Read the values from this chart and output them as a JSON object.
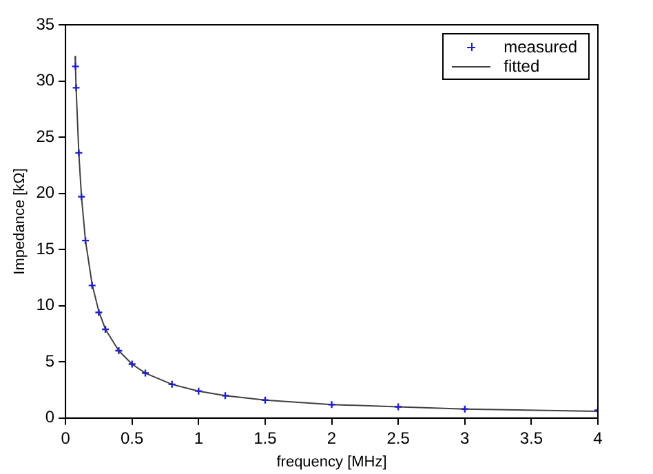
{
  "chart_data": {
    "type": "scatter",
    "xlabel": "frequency [MHz]",
    "ylabel": "Impedance [kΩ]",
    "xlim": [
      0,
      4
    ],
    "xticks": [
      0,
      0.5,
      1,
      1.5,
      2,
      2.5,
      3,
      3.5,
      4
    ],
    "ylim": [
      0,
      35
    ],
    "yticks": [
      0,
      5,
      10,
      15,
      20,
      25,
      30,
      35
    ],
    "grid": false,
    "legend": "top right",
    "series": [
      {
        "name": "measured",
        "type": "scatter",
        "marker": "cross",
        "color": "#2020c8",
        "x": [
          0.075,
          0.08,
          0.1,
          0.12,
          0.15,
          0.2,
          0.25,
          0.3,
          0.4,
          0.5,
          0.6,
          0.8,
          1,
          1.2,
          1.5,
          2,
          2.5,
          3,
          4
        ],
        "values": [
          31.3,
          29.4,
          23.6,
          19.7,
          15.8,
          11.8,
          9.4,
          7.9,
          6.0,
          4.8,
          4.0,
          3.0,
          2.4,
          2.0,
          1.6,
          1.2,
          1.0,
          0.8,
          0.7
        ]
      },
      {
        "name": "fitted",
        "type": "line",
        "marker": "none",
        "line_style": "solid",
        "color": "#404040",
        "x": [
          0.072,
          0.075,
          0.08,
          0.1,
          0.12,
          0.15,
          0.2,
          0.25,
          0.3,
          0.4,
          0.5,
          0.6,
          0.8,
          1,
          1.2,
          1.5,
          2,
          2.5,
          3,
          4
        ],
        "values": [
          32.2,
          31.2,
          29.3,
          23.6,
          19.7,
          15.8,
          11.9,
          9.5,
          7.9,
          6.0,
          4.8,
          4.0,
          3.0,
          2.4,
          2.0,
          1.6,
          1.2,
          1.0,
          0.8,
          0.6
        ]
      }
    ]
  }
}
